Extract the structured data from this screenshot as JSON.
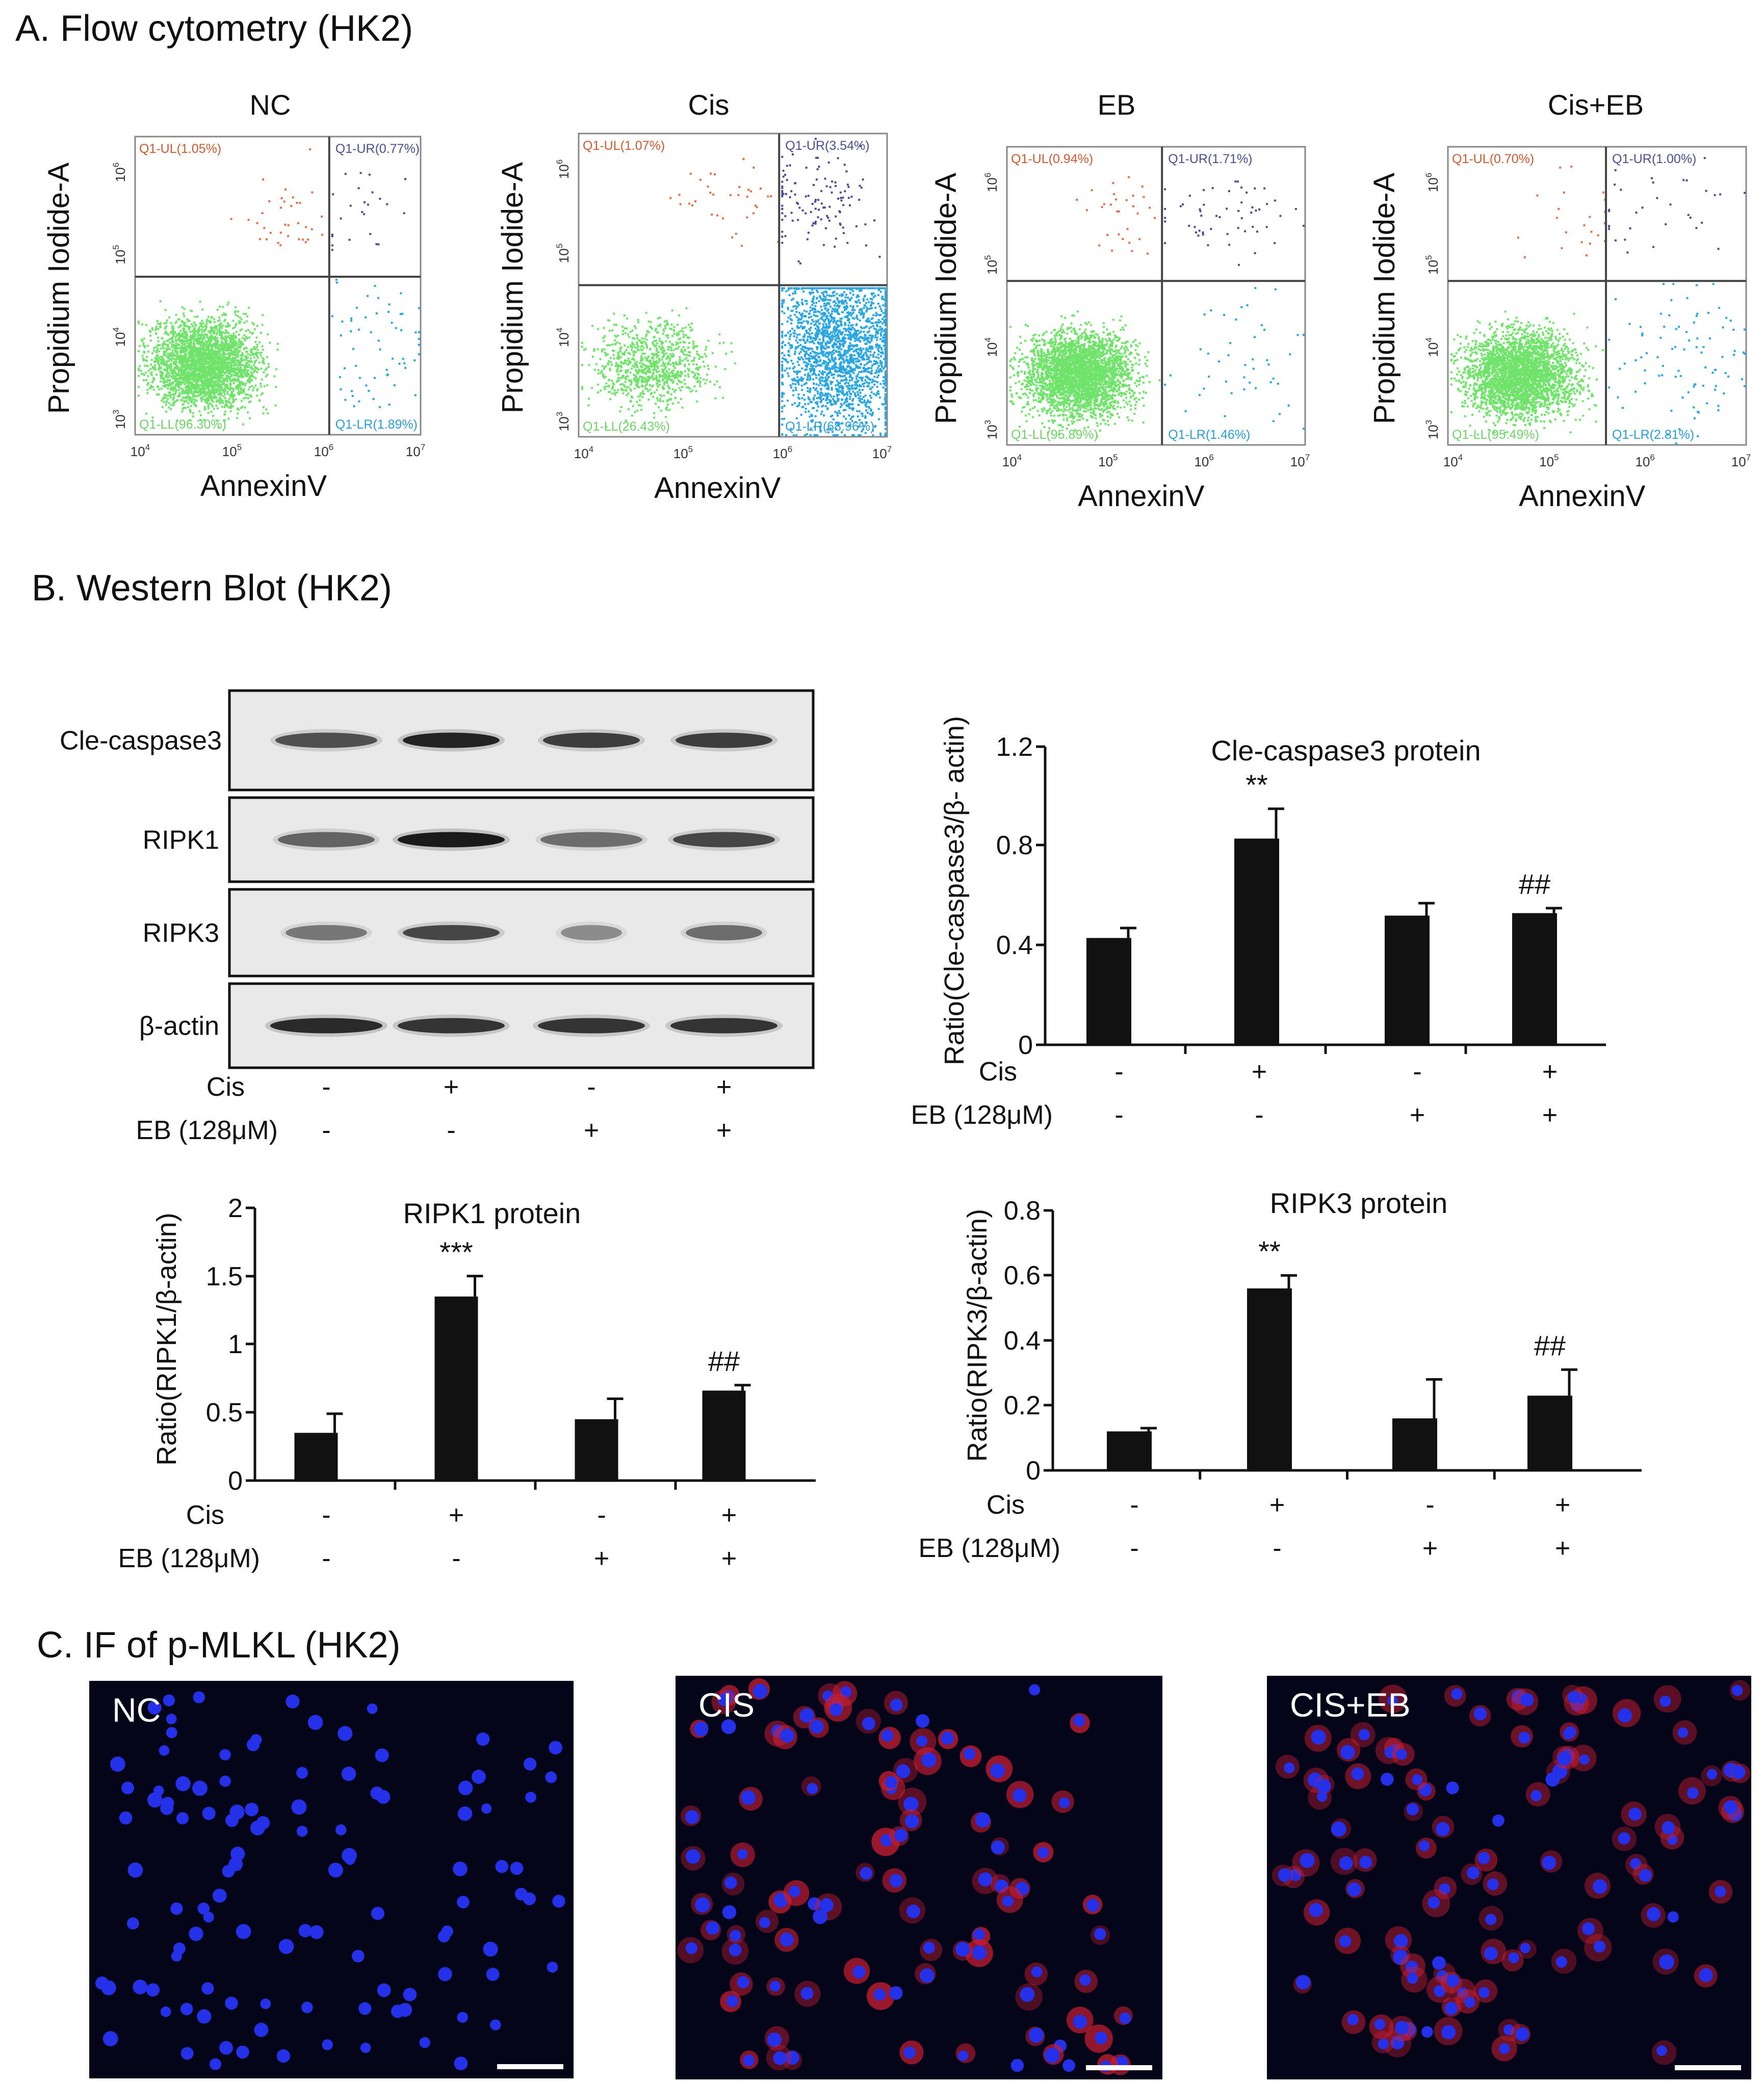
{
  "panels": {
    "a_title": "A. Flow cytometry (HK2)",
    "b_title": "B. Western Blot (HK2)",
    "c_title": "C. IF of p-MLKL (HK2)"
  },
  "flow_plots": [
    {
      "title": "NC",
      "ylabel": "Propidium Iodide-A",
      "xlabel": "AnnexinV",
      "ul": "Q1-UL(1.05%)",
      "ur": "Q1-UR(0.77%)",
      "ll": "Q1-LL(96.30%)",
      "lr": "Q1-LR(1.89%)"
    },
    {
      "title": "Cis",
      "ylabel": "Propidium Iodide-A",
      "xlabel": "AnnexinV",
      "ul": "Q1-UL(1.07%)",
      "ur": "Q1-UR(3.54%)",
      "ll": "Q1-LL(26.43%)",
      "lr": "Q1-LR(68.96%)"
    },
    {
      "title": "EB",
      "ylabel": "Propidium Iodide-A",
      "xlabel": "AnnexinV",
      "ul": "Q1-UL(0.94%)",
      "ur": "Q1-UR(1.71%)",
      "ll": "Q1-LL(95.89%)",
      "lr": "Q1-LR(1.46%)"
    },
    {
      "title": "Cis+EB",
      "ylabel": "Propidium Iodide-A",
      "xlabel": "AnnexinV",
      "ul": "Q1-UL(0.70%)",
      "ur": "Q1-UR(1.00%)",
      "ll": "Q1-LL(95.49%)",
      "lr": "Q1-LR(2.81%)"
    }
  ],
  "flow_ticks": {
    "x": [
      {
        "base": "10",
        "exp": "4"
      },
      {
        "base": "10",
        "exp": "5"
      },
      {
        "base": "10",
        "exp": "6"
      },
      {
        "base": "10",
        "exp": "7"
      }
    ],
    "y": [
      {
        "base": "10",
        "exp": "3"
      },
      {
        "base": "10",
        "exp": "4"
      },
      {
        "base": "10",
        "exp": "5"
      },
      {
        "base": "10",
        "exp": "6"
      }
    ]
  },
  "western_blot": {
    "bands": [
      "Cle-caspase3",
      "RIPK1",
      "RIPK3",
      "β-actin"
    ],
    "cis_label": "Cis",
    "eb_label": "EB (128μM)",
    "cis_signs": [
      "-",
      "+",
      "-",
      "+"
    ],
    "eb_signs": [
      "-",
      "-",
      "+",
      "+"
    ]
  },
  "chart_data": [
    {
      "type": "bar",
      "title": "Cle-caspase3  protein",
      "ylabel": "Ratio(Cle-caspase3/β- actin)",
      "ylim": [
        0,
        1.2
      ],
      "yticks": [
        "0",
        "0.4",
        "0.8",
        "1.2"
      ],
      "categories": [
        "Cis- EB-",
        "Cis+ EB-",
        "Cis- EB+",
        "Cis+ EB+"
      ],
      "values": [
        0.43,
        0.83,
        0.52,
        0.53
      ],
      "errors": [
        0.04,
        0.12,
        0.05,
        0.02
      ],
      "annotations": [
        "",
        "**",
        "",
        "##"
      ],
      "row_labels": [
        "Cis",
        "EB (128μM)"
      ],
      "cis_signs": [
        "-",
        "+",
        "-",
        "+"
      ],
      "eb_signs": [
        "-",
        "-",
        "+",
        "+"
      ]
    },
    {
      "type": "bar",
      "title": "RIPK1  protein",
      "ylabel": "Ratio(RIPK1/β-actin)",
      "ylim": [
        0,
        2
      ],
      "yticks": [
        "0",
        "0.5",
        "1",
        "1.5",
        "2"
      ],
      "categories": [
        "Cis- EB-",
        "Cis+ EB-",
        "Cis- EB+",
        "Cis+ EB+"
      ],
      "values": [
        0.35,
        1.35,
        0.45,
        0.66
      ],
      "errors": [
        0.14,
        0.15,
        0.15,
        0.04
      ],
      "annotations": [
        "",
        "***",
        "",
        "##"
      ],
      "row_labels": [
        "Cis",
        "EB (128μM)"
      ],
      "cis_signs": [
        "-",
        "+",
        "-",
        "+"
      ],
      "eb_signs": [
        "-",
        "-",
        "+",
        "+"
      ]
    },
    {
      "type": "bar",
      "title": "RIPK3  protein",
      "ylabel": "Ratio(RIPK3/β-actin)",
      "ylim": [
        0,
        0.8
      ],
      "yticks": [
        "0",
        "0.2",
        "0.4",
        "0.6",
        "0.8"
      ],
      "categories": [
        "Cis- EB-",
        "Cis+ EB-",
        "Cis- EB+",
        "Cis+ EB+"
      ],
      "values": [
        0.12,
        0.56,
        0.16,
        0.23
      ],
      "errors": [
        0.01,
        0.04,
        0.12,
        0.08
      ],
      "annotations": [
        "",
        "**",
        "",
        "##"
      ],
      "row_labels": [
        "Cis",
        "EB (128μM)"
      ],
      "cis_signs": [
        "-",
        "+",
        "-",
        "+"
      ],
      "eb_signs": [
        "-",
        "-",
        "+",
        "+"
      ]
    }
  ],
  "if_panels": [
    {
      "label": "NC",
      "red_level": 0.0
    },
    {
      "label": "CIS",
      "red_level": 0.85
    },
    {
      "label": "CIS+EB",
      "red_level": 0.45
    }
  ]
}
